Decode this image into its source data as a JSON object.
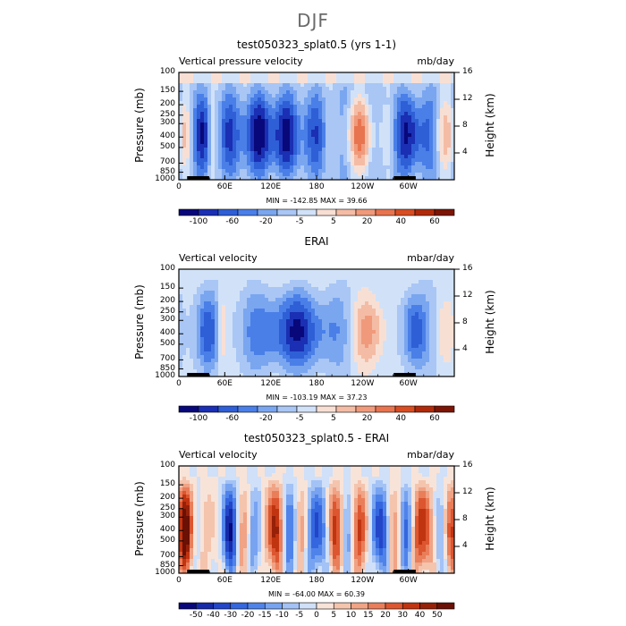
{
  "suptitle": "DJF",
  "panels": [
    {
      "title": "test050323_splat0.5 (yrs 1-1)",
      "left_label": "Vertical pressure velocity",
      "right_label": "mb/day",
      "ylabel_left": "Pressure (mb)",
      "ylabel_right": "Height (km)",
      "minmax": "MIN = -142.85   MAX =  39.66",
      "levels": [
        "-100",
        "-60",
        "-20",
        "-5",
        "5",
        "20",
        "40",
        "60"
      ],
      "palette": [
        "#08087a",
        "#1a2fb3",
        "#2f5fd6",
        "#4a7fe8",
        "#7aa6f0",
        "#a9c6f5",
        "#d1e2f8",
        "#f8dfd4",
        "#f4bca5",
        "#f09a7b",
        "#e8744f",
        "#d94d22",
        "#b02a0a",
        "#7c1505"
      ]
    },
    {
      "title": "ERAI",
      "left_label": "Vertical velocity",
      "right_label": "mbar/day",
      "ylabel_left": "Pressure (mb)",
      "ylabel_right": "Height (km)",
      "minmax": "MIN = -103.19   MAX =  37.23",
      "levels": [
        "-100",
        "-60",
        "-20",
        "-5",
        "5",
        "20",
        "40",
        "60"
      ],
      "palette": [
        "#08087a",
        "#1a2fb3",
        "#2f5fd6",
        "#4a7fe8",
        "#7aa6f0",
        "#a9c6f5",
        "#d1e2f8",
        "#f8dfd4",
        "#f4bca5",
        "#f09a7b",
        "#e8744f",
        "#d94d22",
        "#b02a0a",
        "#7c1505"
      ]
    },
    {
      "title": "test050323_splat0.5 - ERAI",
      "left_label": "Vertical velocity",
      "right_label": "mbar/day",
      "ylabel_left": "Pressure (mb)",
      "ylabel_right": "Height (km)",
      "minmax": "MIN = -64.00   MAX =  60.39",
      "levels": [
        "-50",
        "-40",
        "-30",
        "-20",
        "-15",
        "-10",
        "-5",
        "0",
        "5",
        "10",
        "15",
        "20",
        "30",
        "40",
        "50"
      ],
      "palette": [
        "#08087a",
        "#162aa8",
        "#2345c8",
        "#3466df",
        "#4f83ea",
        "#77a3f0",
        "#a3c2f5",
        "#cfe0f8",
        "#f8e3d8",
        "#f4c4ad",
        "#f0a385",
        "#e97e5a",
        "#dc5630",
        "#c13410",
        "#962008",
        "#6a1004"
      ]
    }
  ],
  "chart_data": [
    {
      "type": "heatmap",
      "title": "test050323_splat0.5 (yrs 1-1)",
      "variable": "Vertical pressure velocity",
      "units": "mb/day",
      "season": "DJF",
      "x": [
        "0",
        "60E",
        "120E",
        "180",
        "120W",
        "60W"
      ],
      "y_pressure": [
        "100",
        "150",
        "200",
        "250",
        "300",
        "400",
        "500",
        "700",
        "850",
        "1000"
      ],
      "y_height_km": [
        "4",
        "8",
        "12",
        "16"
      ],
      "xlim": [
        0,
        360
      ],
      "ylim": [
        1000,
        100
      ],
      "min": -142.85,
      "max": 39.66,
      "colorbar_levels": [
        -100,
        -60,
        -20,
        -5,
        5,
        20,
        40,
        60
      ]
    },
    {
      "type": "heatmap",
      "title": "ERAI",
      "variable": "Vertical velocity",
      "units": "mbar/day",
      "season": "DJF",
      "x": [
        "0",
        "60E",
        "120E",
        "180",
        "120W",
        "60W"
      ],
      "y_pressure": [
        "100",
        "150",
        "200",
        "250",
        "300",
        "400",
        "500",
        "700",
        "850",
        "1000"
      ],
      "y_height_km": [
        "4",
        "8",
        "12",
        "16"
      ],
      "xlim": [
        0,
        360
      ],
      "ylim": [
        1000,
        100
      ],
      "min": -103.19,
      "max": 37.23,
      "colorbar_levels": [
        -100,
        -60,
        -20,
        -5,
        5,
        20,
        40,
        60
      ]
    },
    {
      "type": "heatmap",
      "title": "test050323_splat0.5 - ERAI",
      "variable": "Vertical velocity",
      "units": "mbar/day",
      "season": "DJF",
      "x": [
        "0",
        "60E",
        "120E",
        "180",
        "120W",
        "60W"
      ],
      "y_pressure": [
        "100",
        "150",
        "200",
        "250",
        "300",
        "400",
        "500",
        "700",
        "850",
        "1000"
      ],
      "y_height_km": [
        "4",
        "8",
        "12",
        "16"
      ],
      "xlim": [
        0,
        360
      ],
      "ylim": [
        1000,
        100
      ],
      "min": -64.0,
      "max": 60.39,
      "colorbar_levels": [
        -50,
        -40,
        -30,
        -20,
        -15,
        -10,
        -5,
        0,
        5,
        10,
        15,
        20,
        30,
        40,
        50
      ]
    }
  ]
}
